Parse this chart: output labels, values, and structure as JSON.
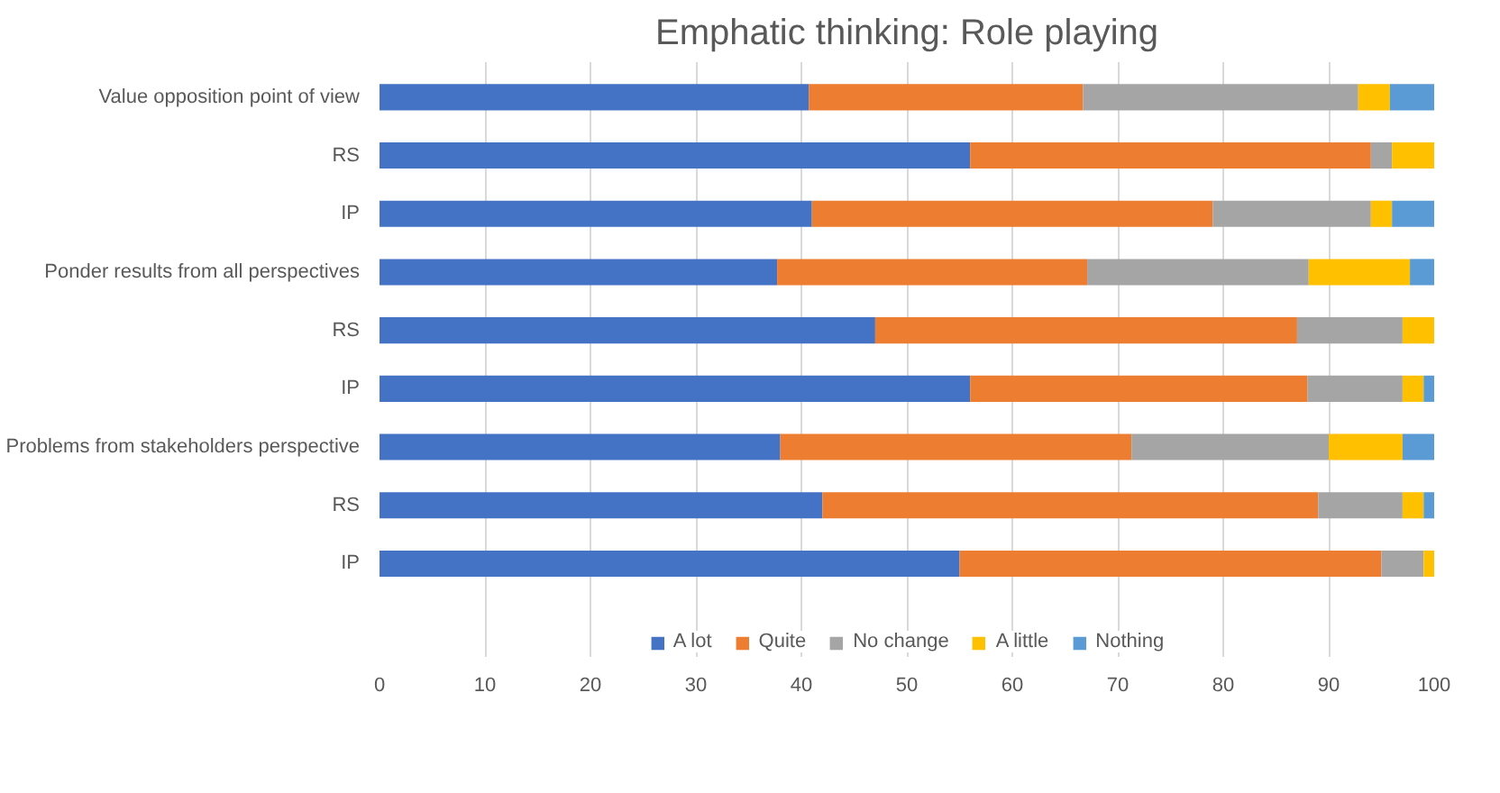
{
  "chart_data": {
    "type": "bar",
    "orientation": "horizontal",
    "stacked": true,
    "title": "Emphatic thinking: Role playing",
    "categories": [
      "Value opposition point of view",
      "RS",
      "IP",
      "Ponder results from all perspectives",
      "RS",
      "IP",
      "Problems from stakeholders perspective",
      "RS",
      "IP"
    ],
    "series": [
      {
        "name": "A lot",
        "color": "#4472c4",
        "values": [
          40.7,
          56,
          41,
          37.7,
          47,
          56,
          38,
          42,
          55
        ]
      },
      {
        "name": "Quite",
        "color": "#ed7d31",
        "values": [
          26,
          38,
          38,
          29.4,
          40,
          32,
          33.3,
          47,
          40
        ]
      },
      {
        "name": "No change",
        "color": "#a5a5a5",
        "values": [
          26.1,
          2,
          15,
          21,
          10,
          9,
          18.7,
          8,
          4
        ]
      },
      {
        "name": "A little",
        "color": "#ffc000",
        "values": [
          3,
          4,
          2,
          9.6,
          3,
          2,
          7,
          2,
          1
        ]
      },
      {
        "name": "Nothing",
        "color": "#5b9bd5",
        "values": [
          4.2,
          0,
          4,
          2.3,
          0,
          1,
          3,
          1,
          0
        ]
      }
    ],
    "xlim": [
      0,
      100
    ],
    "xticks": [
      0,
      10,
      20,
      30,
      40,
      50,
      60,
      70,
      80,
      90,
      100
    ],
    "grid": "x",
    "legend": "bottom"
  }
}
